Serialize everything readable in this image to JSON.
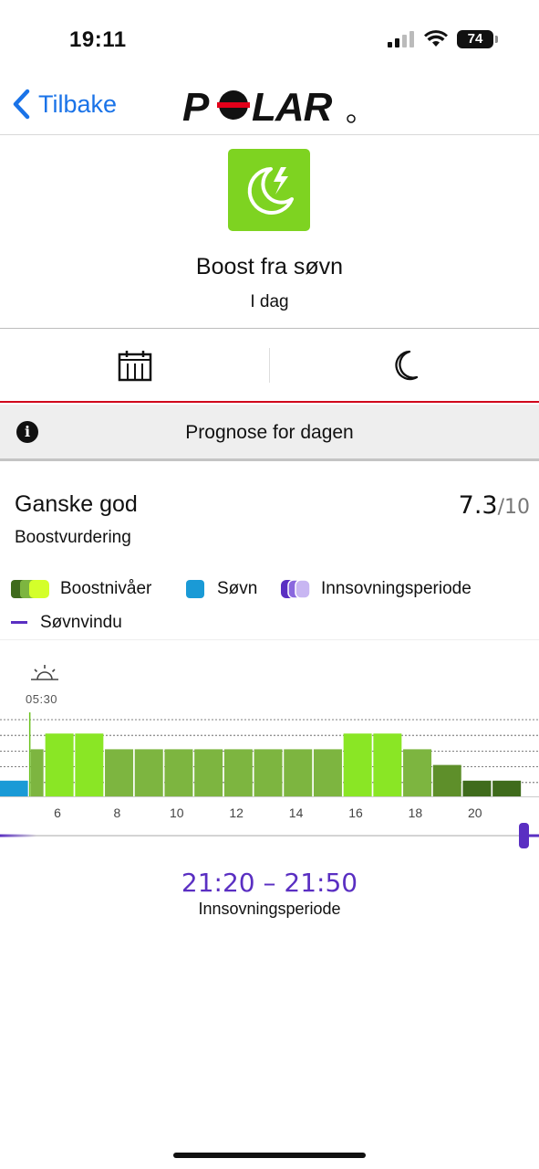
{
  "status": {
    "time": "19:11",
    "battery": "74"
  },
  "nav": {
    "back_label": "Tilbake",
    "logo_text": "POLAR"
  },
  "header": {
    "title": "Boost fra søvn",
    "subtitle": "I dag"
  },
  "forecast": {
    "label": "Prognose for dagen"
  },
  "rating": {
    "title": "Ganske god",
    "subtitle": "Boostvurdering",
    "score": "7.3",
    "score_max": "/10"
  },
  "legend": {
    "boost": "Boostnivåer",
    "sleep": "Søvn",
    "onset": "Innsovningsperiode",
    "window": "Søvnvindu"
  },
  "chart_data": {
    "type": "bar",
    "sunrise_time": "05:30",
    "x_ticks": [
      "6",
      "8",
      "10",
      "12",
      "14",
      "16",
      "18",
      "20"
    ],
    "categories": [
      "4",
      "5",
      "6",
      "7",
      "8",
      "9",
      "10",
      "11",
      "12",
      "13",
      "14",
      "15",
      "16",
      "17",
      "18",
      "19",
      "20",
      "21"
    ],
    "levels": [
      1,
      3,
      4,
      4,
      3,
      3,
      3,
      3,
      3,
      3,
      3,
      3,
      4,
      4,
      3,
      2,
      1,
      1
    ],
    "level_kinds": [
      "sleep",
      "boost",
      "boost",
      "boost",
      "boost",
      "boost",
      "boost",
      "boost",
      "boost",
      "boost",
      "boost",
      "boost",
      "boost",
      "boost",
      "boost",
      "boost",
      "boost",
      "boost"
    ],
    "ylim": [
      0,
      5
    ],
    "colors": {
      "sleep": "#1a9ad6",
      "level_1": "#3f6b1c",
      "level_2": "#5e8f2a",
      "level_3": "#7db540",
      "level_4": "#8ae625",
      "sleep_window": "#5a2fc2"
    }
  },
  "sleep_window": {
    "time_range": "21:20 – 21:50",
    "label": "Innsovningsperiode"
  }
}
